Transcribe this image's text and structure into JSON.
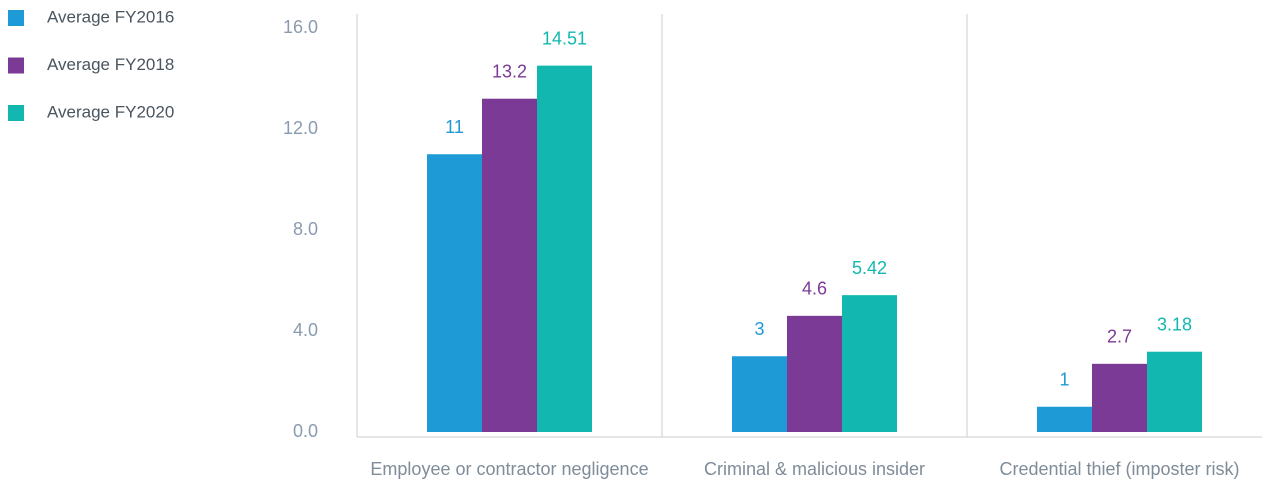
{
  "chart_data": {
    "type": "bar",
    "categories": [
      "Employee or contractor negligence",
      "Criminal & malicious insider",
      "Credential thief (imposter risk)"
    ],
    "series": [
      {
        "name": "Average FY2016",
        "color": "#1e9ad6",
        "values": [
          11,
          3,
          1
        ]
      },
      {
        "name": "Average FY2018",
        "color": "#7b3a96",
        "values": [
          13.2,
          4.6,
          2.7
        ]
      },
      {
        "name": "Average FY2020",
        "color": "#12b8b0",
        "values": [
          14.51,
          5.42,
          3.18
        ]
      }
    ],
    "ylim": [
      0,
      16
    ],
    "yticks": [
      {
        "value": 0,
        "label": "0.0"
      },
      {
        "value": 4,
        "label": "4.0"
      },
      {
        "value": 8,
        "label": "8.0"
      },
      {
        "value": 12,
        "label": "12.0"
      },
      {
        "value": 16,
        "label": "16.0"
      }
    ],
    "legend": "top-left"
  }
}
